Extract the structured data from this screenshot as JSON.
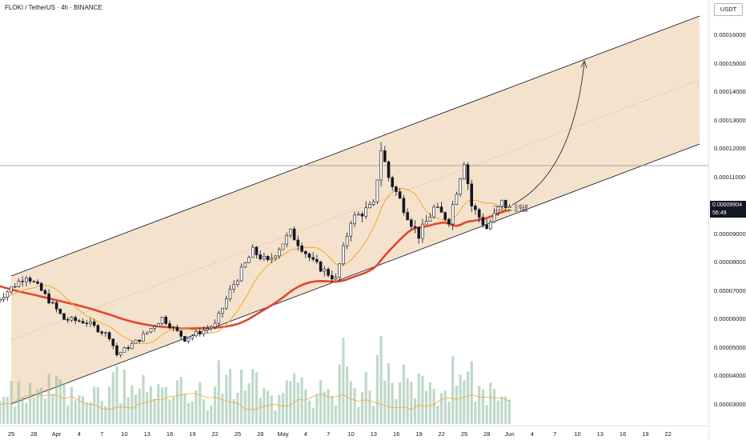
{
  "header": {
    "symbol_line": "FLOKI / TetherUS · 4h · BINANCE"
  },
  "axis": {
    "unit": "USDT"
  },
  "price_tag": {
    "price": "0.00009904",
    "countdown": "56:49"
  },
  "fib_labels": {
    "top": "0.618",
    "bottom": "0.786"
  },
  "colors": {
    "channel_fill": "#f1d6b8",
    "channel_line": "#131722",
    "ma_long": "#e0472f",
    "ma_short": "#f4a62a",
    "candle": "#131722",
    "volume": "#8ab99c"
  },
  "chart_data": {
    "type": "candlestick",
    "title": "FLOKI / TetherUS · 4h · BINANCE",
    "y_tick_labels": [
      "0.00016000",
      "0.00015000",
      "0.00014000",
      "0.00013000",
      "0.00012000",
      "0.00011000",
      "0.00010000",
      "0.00009000",
      "0.00008000",
      "0.00007000",
      "0.00006000",
      "0.00005000",
      "0.00004000",
      "0.00003000"
    ],
    "x_tick_labels": [
      "25",
      "28",
      "Apr",
      "4",
      "7",
      "10",
      "13",
      "16",
      "19",
      "22",
      "25",
      "28",
      "May",
      "4",
      "7",
      "10",
      "13",
      "16",
      "19",
      "22",
      "25",
      "28",
      "Jun",
      "4",
      "7",
      "10",
      "13",
      "16",
      "19",
      "22"
    ],
    "price_path": [
      {
        "x": "Mar 23",
        "y": 6.65e-05
      },
      {
        "x": "Mar 27",
        "y": 7.55e-05
      },
      {
        "x": "Mar 29",
        "y": 7e-05
      },
      {
        "x": "Apr 1",
        "y": 6e-05
      },
      {
        "x": "Apr 4",
        "y": 5.9e-05
      },
      {
        "x": "Apr 7",
        "y": 5.4e-05
      },
      {
        "x": "Apr 8",
        "y": 4.75e-05
      },
      {
        "x": "Apr 11",
        "y": 5.3e-05
      },
      {
        "x": "Apr 14",
        "y": 6.05e-05
      },
      {
        "x": "Apr 17",
        "y": 5.3e-05
      },
      {
        "x": "Apr 21",
        "y": 5.8e-05
      },
      {
        "x": "Apr 23",
        "y": 7e-05
      },
      {
        "x": "Apr 26",
        "y": 8.4e-05
      },
      {
        "x": "Apr 28",
        "y": 8e-05
      },
      {
        "x": "May 1",
        "y": 9.05e-05
      },
      {
        "x": "May 4",
        "y": 8e-05
      },
      {
        "x": "May 7",
        "y": 7.4e-05
      },
      {
        "x": "May 9",
        "y": 9.5e-05
      },
      {
        "x": "May 12",
        "y": 0.0001
      },
      {
        "x": "May 13",
        "y": 0.00012
      },
      {
        "x": "May 14",
        "y": 0.00011
      },
      {
        "x": "May 17",
        "y": 9.4e-05
      },
      {
        "x": "May 18",
        "y": 8.95e-05
      },
      {
        "x": "May 20",
        "y": 9.9e-05
      },
      {
        "x": "May 22",
        "y": 9.5e-05
      },
      {
        "x": "May 24",
        "y": 0.000116
      },
      {
        "x": "May 25",
        "y": 0.0001
      },
      {
        "x": "May 27",
        "y": 9.2e-05
      },
      {
        "x": "May 29",
        "y": 0.000101
      },
      {
        "x": "May 30",
        "y": 9.9e-05
      }
    ],
    "last_price": 9.904e-05,
    "ylim": [
      2.35e-05,
      0.0001655
    ],
    "grid": false,
    "overlays": [
      "ascending channel",
      "moving averages",
      "volume histogram",
      "projection arrow"
    ]
  }
}
